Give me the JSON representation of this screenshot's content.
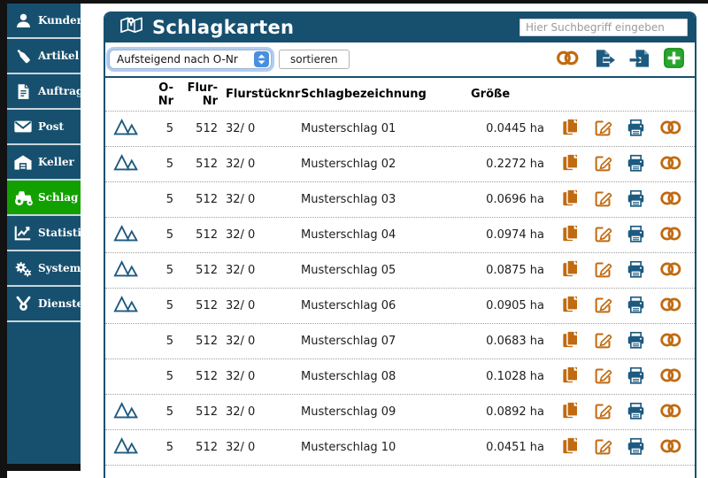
{
  "header": {
    "title": "Schlagkarten",
    "search_placeholder": "Hier Suchbegriff eingeben"
  },
  "toolbar": {
    "sort_value": "Aufsteigend nach O-Nr",
    "sort_button": "sortieren",
    "icons": [
      "toggle-icon",
      "file-export-icon",
      "file-import-icon",
      "add-icon"
    ]
  },
  "sidebar": {
    "items": [
      {
        "label": "Kunden",
        "icon": "user",
        "active": false
      },
      {
        "label": "Artikel",
        "icon": "bottle",
        "active": false
      },
      {
        "label": "Auftrag",
        "icon": "doc",
        "active": false
      },
      {
        "label": "Post",
        "icon": "mail",
        "active": false
      },
      {
        "label": "Keller",
        "icon": "cellar",
        "active": false
      },
      {
        "label": "Schlag",
        "icon": "tractor",
        "active": true
      },
      {
        "label": "Statistik",
        "icon": "stats",
        "active": false
      },
      {
        "label": "System",
        "icon": "gears",
        "active": false
      },
      {
        "label": "Dienste",
        "icon": "service",
        "active": false
      }
    ]
  },
  "table": {
    "columns": {
      "o_nr": "O-Nr",
      "flur_nr": "Flur-Nr",
      "flurstuecknr": "Flurstücknr",
      "name": "Schlagbezeichnung",
      "groesse": "Größe"
    },
    "rows": [
      {
        "map_icon": true,
        "o_nr": "5",
        "flur_nr": "512",
        "flurstuecknr": "32/ 0",
        "name": "Musterschlag 01",
        "groesse": "0.0445 ha"
      },
      {
        "map_icon": true,
        "o_nr": "5",
        "flur_nr": "512",
        "flurstuecknr": "32/ 0",
        "name": "Musterschlag 02",
        "groesse": "0.2272 ha"
      },
      {
        "map_icon": false,
        "o_nr": "5",
        "flur_nr": "512",
        "flurstuecknr": "32/ 0",
        "name": "Musterschlag 03",
        "groesse": "0.0696 ha"
      },
      {
        "map_icon": true,
        "o_nr": "5",
        "flur_nr": "512",
        "flurstuecknr": "32/ 0",
        "name": "Musterschlag 04",
        "groesse": "0.0974 ha"
      },
      {
        "map_icon": true,
        "o_nr": "5",
        "flur_nr": "512",
        "flurstuecknr": "32/ 0",
        "name": "Musterschlag 05",
        "groesse": "0.0875 ha"
      },
      {
        "map_icon": true,
        "o_nr": "5",
        "flur_nr": "512",
        "flurstuecknr": "32/ 0",
        "name": "Musterschlag 06",
        "groesse": "0.0905 ha"
      },
      {
        "map_icon": false,
        "o_nr": "5",
        "flur_nr": "512",
        "flurstuecknr": "32/ 0",
        "name": "Musterschlag 07",
        "groesse": "0.0683 ha"
      },
      {
        "map_icon": false,
        "o_nr": "5",
        "flur_nr": "512",
        "flurstuecknr": "32/ 0",
        "name": "Musterschlag 08",
        "groesse": "0.1028 ha"
      },
      {
        "map_icon": true,
        "o_nr": "5",
        "flur_nr": "512",
        "flurstuecknr": "32/ 0",
        "name": "Musterschlag 09",
        "groesse": "0.0892 ha"
      },
      {
        "map_icon": true,
        "o_nr": "5",
        "flur_nr": "512",
        "flurstuecknr": "32/ 0",
        "name": "Musterschlag 10",
        "groesse": "0.0451 ha"
      }
    ]
  },
  "colors": {
    "primary_blue": "#17506f",
    "active_green": "#12a000",
    "add_green": "#2aa62e",
    "icon_orange": "#c16a10",
    "icon_blue": "#1d5a80"
  }
}
